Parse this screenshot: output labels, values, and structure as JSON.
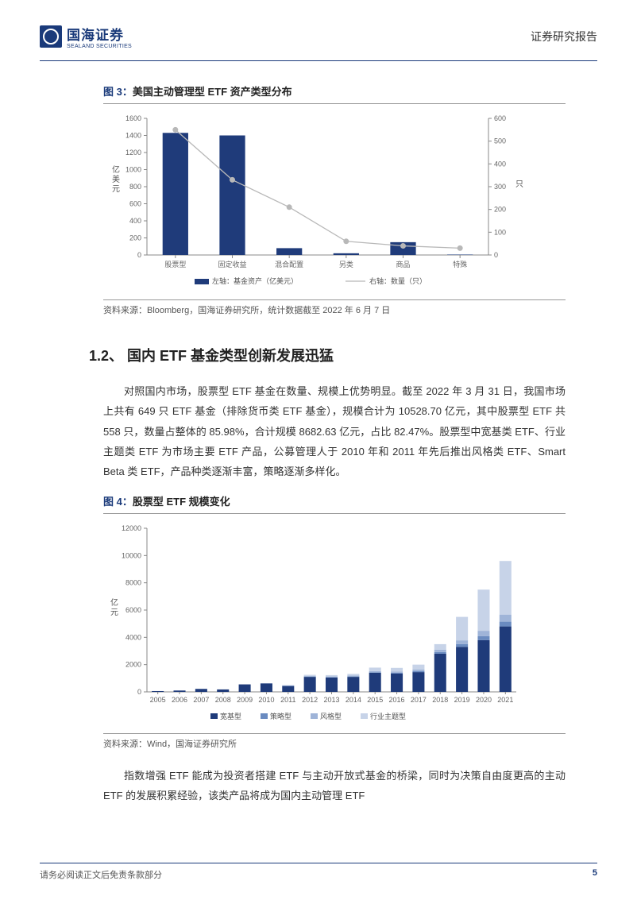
{
  "header": {
    "logo_cn": "国海证券",
    "logo_en": "SEALAND SECURITIES",
    "right": "证券研究报告"
  },
  "figure3": {
    "label_prefix": "图 3：",
    "title": "美国主动管理型 ETF 资产类型分布",
    "type": "bar+line-dual-axis",
    "categories": [
      "股票型",
      "固定收益",
      "混合配置",
      "另类",
      "商品",
      "特殊"
    ],
    "bar_values": [
      1430,
      1400,
      80,
      20,
      150,
      5
    ],
    "line_values": [
      550,
      330,
      210,
      60,
      40,
      30
    ],
    "left_ylabel": "亿美元",
    "right_ylabel": "只",
    "left_ylim": [
      0,
      1600
    ],
    "left_ytick_step": 200,
    "right_ylim": [
      0,
      600
    ],
    "right_ytick_step": 100,
    "bar_color": "#1f3b7a",
    "line_color": "#b8b8b8",
    "marker_color": "#b8b8b8",
    "marker_size": 3.5,
    "line_width": 1.3,
    "bar_width_ratio": 0.45,
    "legend": {
      "left_label": "左轴：基金资产（亿美元）",
      "right_label": "右轴：数量（只）"
    },
    "axis_color": "#888888",
    "tick_color": "#888888",
    "background_color": "#ffffff",
    "axis_fontsize": 9,
    "source": "资料来源：Bloomberg，国海证券研究所，统计数据截至 2022 年 6 月 7 日"
  },
  "section_1_2": {
    "heading": "1.2、 国内 ETF 基金类型创新发展迅猛",
    "para1": "对照国内市场，股票型 ETF 基金在数量、规模上优势明显。截至 2022 年 3 月 31 日，我国市场上共有 649 只 ETF 基金（排除货币类 ETF 基金），规模合计为 10528.70 亿元，其中股票型 ETF 共 558 只，数量占整体的 85.98%，合计规模 8682.63 亿元，占比 82.47%。股票型中宽基类 ETF、行业主题类 ETF 为市场主要 ETF 产品，公募管理人于 2010 年和 2011 年先后推出风格类 ETF、Smart Beta 类 ETF，产品种类逐渐丰富，策略逐渐多样化。"
  },
  "figure4": {
    "label_prefix": "图 4：",
    "title": "股票型 ETF 规模变化",
    "type": "stacked-bar",
    "categories": [
      "2005",
      "2006",
      "2007",
      "2008",
      "2009",
      "2010",
      "2011",
      "2012",
      "2013",
      "2014",
      "2015",
      "2016",
      "2017",
      "2018",
      "2019",
      "2020",
      "2021"
    ],
    "series": [
      {
        "name": "宽基型",
        "color": "#1f3b7a",
        "values": [
          60,
          100,
          220,
          180,
          550,
          620,
          430,
          1100,
          1050,
          1100,
          1400,
          1350,
          1450,
          2800,
          3300,
          3800,
          4800
        ]
      },
      {
        "name": "策略型",
        "color": "#6a8bc0",
        "values": [
          0,
          0,
          0,
          0,
          0,
          0,
          10,
          20,
          20,
          30,
          40,
          60,
          80,
          120,
          200,
          280,
          350
        ]
      },
      {
        "name": "风格型",
        "color": "#9fb4d8",
        "values": [
          0,
          0,
          0,
          0,
          0,
          10,
          30,
          50,
          60,
          70,
          80,
          90,
          120,
          180,
          280,
          400,
          520
        ]
      },
      {
        "name": "行业主题型",
        "color": "#c7d3e8",
        "values": [
          0,
          0,
          0,
          0,
          0,
          0,
          30,
          80,
          100,
          120,
          260,
          260,
          350,
          400,
          1720,
          3020,
          3930
        ]
      }
    ],
    "ylabel": "亿元",
    "ylim": [
      0,
      12000
    ],
    "ytick_step": 2000,
    "bar_width_ratio": 0.55,
    "axis_color": "#888888",
    "background_color": "#ffffff",
    "axis_fontsize": 9,
    "source": "资料来源：Wind，国海证券研究所"
  },
  "tail_para": "指数增强 ETF 能成为投资者搭建 ETF 与主动开放式基金的桥梁，同时为决策自由度更高的主动 ETF 的发展积累经验，该类产品将成为国内主动管理 ETF",
  "footer": {
    "left": "请务必阅读正文后免责条款部分",
    "page": "5"
  }
}
